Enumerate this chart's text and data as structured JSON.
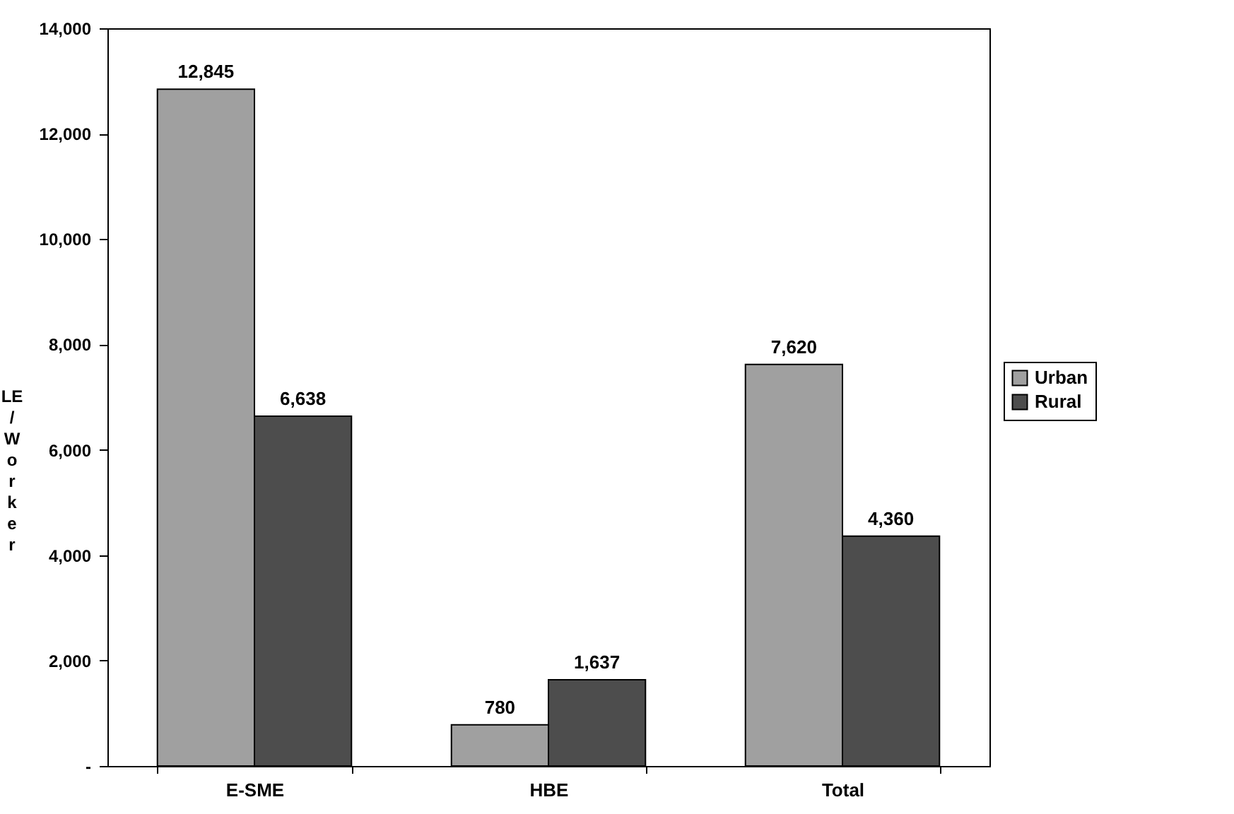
{
  "chart_data": {
    "type": "bar",
    "ylabel": "LE / Worker",
    "categories": [
      "E-SME",
      "HBE",
      "Total"
    ],
    "series": [
      {
        "name": "Urban",
        "color": "#a0a0a0",
        "values": [
          12845,
          780,
          7620
        ],
        "value_labels": [
          "12,845",
          "780",
          "7,620"
        ]
      },
      {
        "name": "Rural",
        "color": "#4d4d4d",
        "values": [
          6638,
          1637,
          4360
        ],
        "value_labels": [
          "6,638",
          "1,637",
          "4,360"
        ]
      }
    ],
    "ylim": [
      0,
      14000
    ],
    "yticks": [
      {
        "value": 0,
        "label": "-"
      },
      {
        "value": 2000,
        "label": "2,000"
      },
      {
        "value": 4000,
        "label": "4,000"
      },
      {
        "value": 6000,
        "label": "6,000"
      },
      {
        "value": 8000,
        "label": "8,000"
      },
      {
        "value": 10000,
        "label": "10,000"
      },
      {
        "value": 12000,
        "label": "12,000"
      },
      {
        "value": 14000,
        "label": "14,000"
      }
    ],
    "grid": false,
    "legend": "right"
  }
}
